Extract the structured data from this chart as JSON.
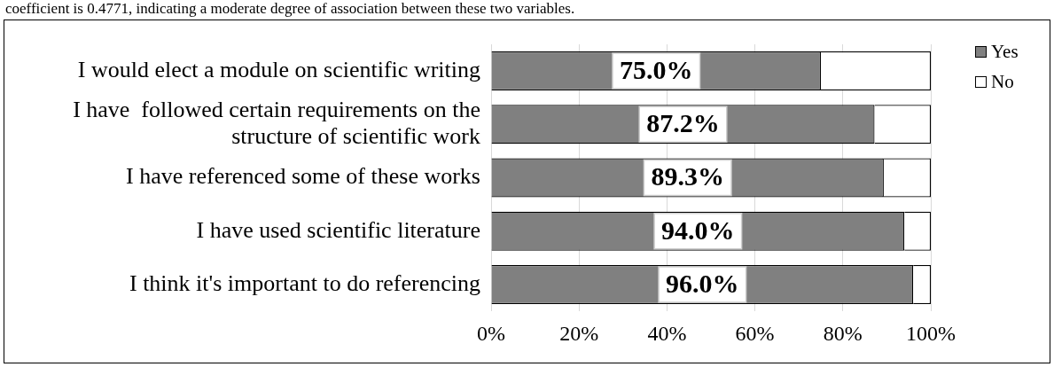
{
  "chart_data": {
    "type": "bar",
    "orientation": "horizontal",
    "stacked": true,
    "annotations": [
      "coefficient is 0.4771, indicating a moderate degree of association between these two variables."
    ],
    "categories": [
      "I would elect a module on scientific writing",
      "I have  followed certain requirements on the structure of scientific work",
      "I have referenced some of these works",
      "I have used scientific literature",
      "I think it's important to do referencing"
    ],
    "series": [
      {
        "name": "Yes",
        "color": "#808080",
        "values": [
          75.0,
          87.2,
          89.3,
          94.0,
          96.0
        ],
        "value_labels": [
          "75.0%",
          "87.2%",
          "89.3%",
          "94.0%",
          "96.0%"
        ]
      },
      {
        "name": "No",
        "color": "#ffffff",
        "values": [
          25.0,
          12.8,
          10.7,
          6.0,
          4.0
        ]
      }
    ],
    "xlim": [
      0,
      100
    ],
    "xticks": [
      {
        "value": 0,
        "label": "0%"
      },
      {
        "value": 20,
        "label": "20%"
      },
      {
        "value": 40,
        "label": "40%"
      },
      {
        "value": 60,
        "label": "60%"
      },
      {
        "value": 80,
        "label": "80%"
      },
      {
        "value": 100,
        "label": "100%"
      }
    ],
    "grid": "x",
    "legend": "right"
  }
}
